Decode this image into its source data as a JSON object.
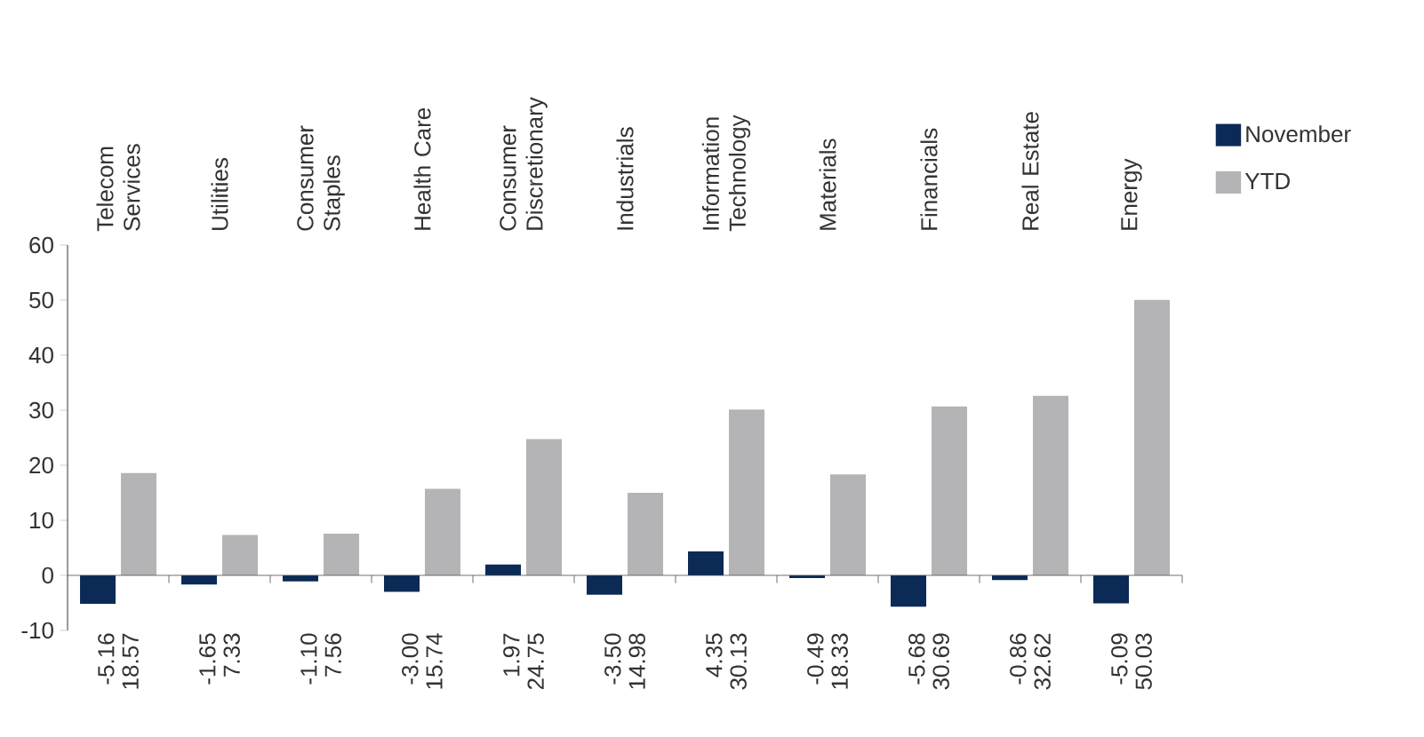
{
  "chart_data": {
    "type": "bar",
    "categories": [
      "Telecom Services",
      "Utilities",
      "Consumer Staples",
      "Health Care",
      "Consumer Discretionary",
      "Industrials",
      "Information Technology",
      "Materials",
      "Financials",
      "Real Estate",
      "Energy"
    ],
    "series": [
      {
        "name": "November",
        "color": "#0b2a56",
        "values": [
          -5.16,
          -1.65,
          -1.1,
          -3.0,
          1.97,
          -3.5,
          4.35,
          -0.49,
          -5.68,
          -0.86,
          -5.09
        ],
        "value_labels": [
          "-5.16",
          "-1.65",
          "-1.10",
          "-3.00",
          "1.97",
          "-3.50",
          "4.35",
          "-0.49",
          "-5.68",
          "-0.86",
          "-5.09"
        ]
      },
      {
        "name": "YTD",
        "color": "#b4b4b6",
        "values": [
          18.57,
          7.33,
          7.56,
          15.74,
          24.75,
          14.98,
          30.13,
          18.33,
          30.69,
          32.62,
          50.03
        ],
        "value_labels": [
          "18.57",
          "7.33",
          "7.56",
          "15.74",
          "24.75",
          "14.98",
          "30.13",
          "18.33",
          "30.69",
          "32.62",
          "50.03"
        ]
      }
    ],
    "ylim": [
      -10,
      60
    ],
    "yticks": [
      -10,
      0,
      10,
      20,
      30,
      40,
      50,
      60
    ],
    "legend": "top right"
  }
}
